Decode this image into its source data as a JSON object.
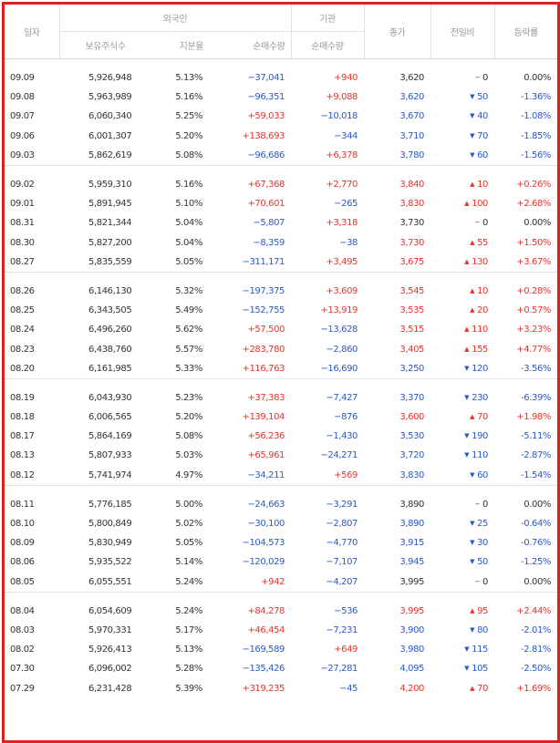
{
  "header": {
    "date_col": "일자",
    "foreign_group": "외국인",
    "institution_group": "기관",
    "close_col": "종가",
    "change_col": "전일비",
    "rate_col": "등락률",
    "foreign_holdings": "보유주식수",
    "foreign_ratio": "지분율",
    "foreign_net": "순매수량",
    "inst_net": "순매수량"
  },
  "groups": [
    {
      "rows": [
        {
          "date": "09.09",
          "holdings": "5,926,948",
          "ratio": "5.13%",
          "fnet": "−37,041",
          "fdir": "down",
          "inet": "+940",
          "idir": "up",
          "close": "3,620",
          "cdir": "flat",
          "arrow": "−",
          "chg": "0",
          "rate": "0.00%"
        },
        {
          "date": "09.08",
          "holdings": "5,963,989",
          "ratio": "5.16%",
          "fnet": "−96,351",
          "fdir": "down",
          "inet": "+9,088",
          "idir": "up",
          "close": "3,620",
          "cdir": "down",
          "arrow": "▼",
          "chg": "50",
          "rate": "-1.36%"
        },
        {
          "date": "09.07",
          "holdings": "6,060,340",
          "ratio": "5.25%",
          "fnet": "+59,033",
          "fdir": "up",
          "inet": "−10,018",
          "idir": "down",
          "close": "3,670",
          "cdir": "down",
          "arrow": "▼",
          "chg": "40",
          "rate": "-1.08%"
        },
        {
          "date": "09.06",
          "holdings": "6,001,307",
          "ratio": "5.20%",
          "fnet": "+138,693",
          "fdir": "up",
          "inet": "−344",
          "idir": "down",
          "close": "3,710",
          "cdir": "down",
          "arrow": "▼",
          "chg": "70",
          "rate": "-1.85%"
        },
        {
          "date": "09.03",
          "holdings": "5,862,619",
          "ratio": "5.08%",
          "fnet": "−96,686",
          "fdir": "down",
          "inet": "+6,378",
          "idir": "up",
          "close": "3,780",
          "cdir": "down",
          "arrow": "▼",
          "chg": "60",
          "rate": "-1.56%"
        }
      ]
    },
    {
      "rows": [
        {
          "date": "09.02",
          "holdings": "5,959,310",
          "ratio": "5.16%",
          "fnet": "+67,368",
          "fdir": "up",
          "inet": "+2,770",
          "idir": "up",
          "close": "3,840",
          "cdir": "up",
          "arrow": "▲",
          "chg": "10",
          "rate": "+0.26%"
        },
        {
          "date": "09.01",
          "holdings": "5,891,945",
          "ratio": "5.10%",
          "fnet": "+70,601",
          "fdir": "up",
          "inet": "−265",
          "idir": "down",
          "close": "3,830",
          "cdir": "up",
          "arrow": "▲",
          "chg": "100",
          "rate": "+2.68%"
        },
        {
          "date": "08.31",
          "holdings": "5,821,344",
          "ratio": "5.04%",
          "fnet": "−5,807",
          "fdir": "down",
          "inet": "+3,318",
          "idir": "up",
          "close": "3,730",
          "cdir": "flat",
          "arrow": "−",
          "chg": "0",
          "rate": "0.00%"
        },
        {
          "date": "08.30",
          "holdings": "5,827,200",
          "ratio": "5.04%",
          "fnet": "−8,359",
          "fdir": "down",
          "inet": "−38",
          "idir": "down",
          "close": "3,730",
          "cdir": "up",
          "arrow": "▲",
          "chg": "55",
          "rate": "+1.50%"
        },
        {
          "date": "08.27",
          "holdings": "5,835,559",
          "ratio": "5.05%",
          "fnet": "−311,171",
          "fdir": "down",
          "inet": "+3,495",
          "idir": "up",
          "close": "3,675",
          "cdir": "up",
          "arrow": "▲",
          "chg": "130",
          "rate": "+3.67%"
        }
      ]
    },
    {
      "rows": [
        {
          "date": "08.26",
          "holdings": "6,146,130",
          "ratio": "5.32%",
          "fnet": "−197,375",
          "fdir": "down",
          "inet": "+3,609",
          "idir": "up",
          "close": "3,545",
          "cdir": "up",
          "arrow": "▲",
          "chg": "10",
          "rate": "+0.28%"
        },
        {
          "date": "08.25",
          "holdings": "6,343,505",
          "ratio": "5.49%",
          "fnet": "−152,755",
          "fdir": "down",
          "inet": "+13,919",
          "idir": "up",
          "close": "3,535",
          "cdir": "up",
          "arrow": "▲",
          "chg": "20",
          "rate": "+0.57%"
        },
        {
          "date": "08.24",
          "holdings": "6,496,260",
          "ratio": "5.62%",
          "fnet": "+57,500",
          "fdir": "up",
          "inet": "−13,628",
          "idir": "down",
          "close": "3,515",
          "cdir": "up",
          "arrow": "▲",
          "chg": "110",
          "rate": "+3.23%"
        },
        {
          "date": "08.23",
          "holdings": "6,438,760",
          "ratio": "5.57%",
          "fnet": "+283,780",
          "fdir": "up",
          "inet": "−2,860",
          "idir": "down",
          "close": "3,405",
          "cdir": "up",
          "arrow": "▲",
          "chg": "155",
          "rate": "+4.77%"
        },
        {
          "date": "08.20",
          "holdings": "6,161,985",
          "ratio": "5.33%",
          "fnet": "+116,763",
          "fdir": "up",
          "inet": "−16,690",
          "idir": "down",
          "close": "3,250",
          "cdir": "down",
          "arrow": "▼",
          "chg": "120",
          "rate": "-3.56%"
        }
      ]
    },
    {
      "rows": [
        {
          "date": "08.19",
          "holdings": "6,043,930",
          "ratio": "5.23%",
          "fnet": "+37,383",
          "fdir": "up",
          "inet": "−7,427",
          "idir": "down",
          "close": "3,370",
          "cdir": "down",
          "arrow": "▼",
          "chg": "230",
          "rate": "-6.39%"
        },
        {
          "date": "08.18",
          "holdings": "6,006,565",
          "ratio": "5.20%",
          "fnet": "+139,104",
          "fdir": "up",
          "inet": "−876",
          "idir": "down",
          "close": "3,600",
          "cdir": "up",
          "arrow": "▲",
          "chg": "70",
          "rate": "+1.98%"
        },
        {
          "date": "08.17",
          "holdings": "5,864,169",
          "ratio": "5.08%",
          "fnet": "+56,236",
          "fdir": "up",
          "inet": "−1,430",
          "idir": "down",
          "close": "3,530",
          "cdir": "down",
          "arrow": "▼",
          "chg": "190",
          "rate": "-5.11%"
        },
        {
          "date": "08.13",
          "holdings": "5,807,933",
          "ratio": "5.03%",
          "fnet": "+65,961",
          "fdir": "up",
          "inet": "−24,271",
          "idir": "down",
          "close": "3,720",
          "cdir": "down",
          "arrow": "▼",
          "chg": "110",
          "rate": "-2.87%"
        },
        {
          "date": "08.12",
          "holdings": "5,741,974",
          "ratio": "4.97%",
          "fnet": "−34,211",
          "fdir": "down",
          "inet": "+569",
          "idir": "up",
          "close": "3,830",
          "cdir": "down",
          "arrow": "▼",
          "chg": "60",
          "rate": "-1.54%"
        }
      ]
    },
    {
      "rows": [
        {
          "date": "08.11",
          "holdings": "5,776,185",
          "ratio": "5.00%",
          "fnet": "−24,663",
          "fdir": "down",
          "inet": "−3,291",
          "idir": "down",
          "close": "3,890",
          "cdir": "flat",
          "arrow": "−",
          "chg": "0",
          "rate": "0.00%"
        },
        {
          "date": "08.10",
          "holdings": "5,800,849",
          "ratio": "5.02%",
          "fnet": "−30,100",
          "fdir": "down",
          "inet": "−2,807",
          "idir": "down",
          "close": "3,890",
          "cdir": "down",
          "arrow": "▼",
          "chg": "25",
          "rate": "-0.64%"
        },
        {
          "date": "08.09",
          "holdings": "5,830,949",
          "ratio": "5.05%",
          "fnet": "−104,573",
          "fdir": "down",
          "inet": "−4,770",
          "idir": "down",
          "close": "3,915",
          "cdir": "down",
          "arrow": "▼",
          "chg": "30",
          "rate": "-0.76%"
        },
        {
          "date": "08.06",
          "holdings": "5,935,522",
          "ratio": "5.14%",
          "fnet": "−120,029",
          "fdir": "down",
          "inet": "−7,107",
          "idir": "down",
          "close": "3,945",
          "cdir": "down",
          "arrow": "▼",
          "chg": "50",
          "rate": "-1.25%"
        },
        {
          "date": "08.05",
          "holdings": "6,055,551",
          "ratio": "5.24%",
          "fnet": "+942",
          "fdir": "up",
          "inet": "−4,207",
          "idir": "down",
          "close": "3,995",
          "cdir": "flat",
          "arrow": "−",
          "chg": "0",
          "rate": "0.00%"
        }
      ]
    },
    {
      "rows": [
        {
          "date": "08.04",
          "holdings": "6,054,609",
          "ratio": "5.24%",
          "fnet": "+84,278",
          "fdir": "up",
          "inet": "−536",
          "idir": "down",
          "close": "3,995",
          "cdir": "up",
          "arrow": "▲",
          "chg": "95",
          "rate": "+2.44%"
        },
        {
          "date": "08.03",
          "holdings": "5,970,331",
          "ratio": "5.17%",
          "fnet": "+46,454",
          "fdir": "up",
          "inet": "−7,231",
          "idir": "down",
          "close": "3,900",
          "cdir": "down",
          "arrow": "▼",
          "chg": "80",
          "rate": "-2.01%"
        },
        {
          "date": "08.02",
          "holdings": "5,926,413",
          "ratio": "5.13%",
          "fnet": "−169,589",
          "fdir": "down",
          "inet": "+649",
          "idir": "up",
          "close": "3,980",
          "cdir": "down",
          "arrow": "▼",
          "chg": "115",
          "rate": "-2.81%"
        },
        {
          "date": "07.30",
          "holdings": "6,096,002",
          "ratio": "5.28%",
          "fnet": "−135,426",
          "fdir": "down",
          "inet": "−27,281",
          "idir": "down",
          "close": "4,095",
          "cdir": "down",
          "arrow": "▼",
          "chg": "105",
          "rate": "-2.50%"
        },
        {
          "date": "07.29",
          "holdings": "6,231,428",
          "ratio": "5.39%",
          "fnet": "+319,235",
          "fdir": "up",
          "inet": "−45",
          "idir": "down",
          "close": "4,200",
          "cdir": "up",
          "arrow": "▲",
          "chg": "70",
          "rate": "+1.69%"
        }
      ]
    }
  ]
}
